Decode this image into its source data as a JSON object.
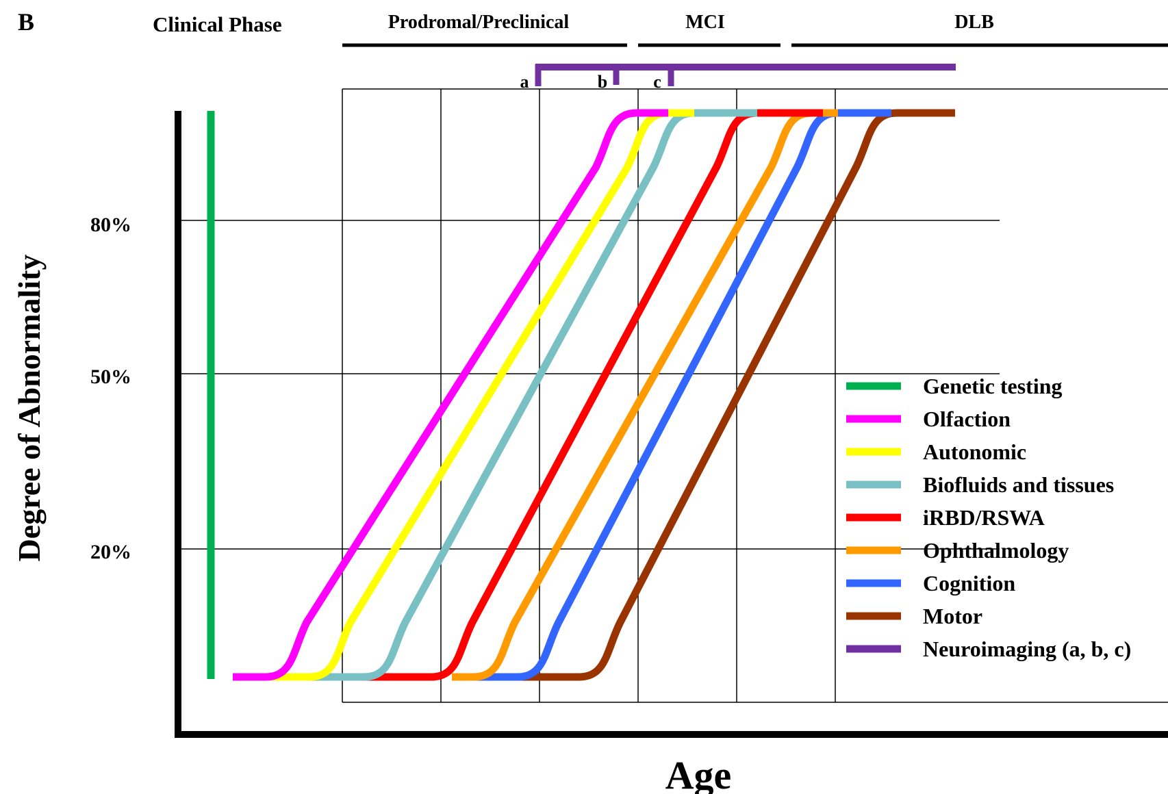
{
  "panel_label": "B",
  "clinical_phase": {
    "title": "Clinical Phase",
    "phases": [
      {
        "label": "Prodromal/Preclinical"
      },
      {
        "label": "MCI"
      },
      {
        "label": "DLB"
      }
    ]
  },
  "axes": {
    "xlabel": "Age",
    "ylabel": "Degree of Abnormality",
    "y_ticks": [
      {
        "label": "80%",
        "value": 80
      },
      {
        "label": "50%",
        "value": 50
      },
      {
        "label": "20%",
        "value": 20
      }
    ]
  },
  "neuroimaging_markers": [
    "a",
    "b",
    "c"
  ],
  "colors": {
    "genetic": "#00b050",
    "olfaction": "#ff00ff",
    "autonomic": "#ffff00",
    "biofluids": "#78c0c4",
    "irbd": "#ff0000",
    "ophthalmology": "#ff9a00",
    "cognition": "#3366ff",
    "motor": "#993300",
    "neuroimaging": "#7030a0"
  },
  "legend": [
    {
      "key": "genetic",
      "label": "Genetic testing"
    },
    {
      "key": "olfaction",
      "label": "Olfaction"
    },
    {
      "key": "autonomic",
      "label": "Autonomic"
    },
    {
      "key": "biofluids",
      "label": "Biofluids and tissues"
    },
    {
      "key": "irbd",
      "label": "iRBD/RSWA"
    },
    {
      "key": "ophthalmology",
      "label": "Ophthalmology"
    },
    {
      "key": "cognition",
      "label": "Cognition"
    },
    {
      "key": "motor",
      "label": "Motor"
    },
    {
      "key": "neuroimaging",
      "label": "Neuroimaging (a, b, c)"
    }
  ]
}
